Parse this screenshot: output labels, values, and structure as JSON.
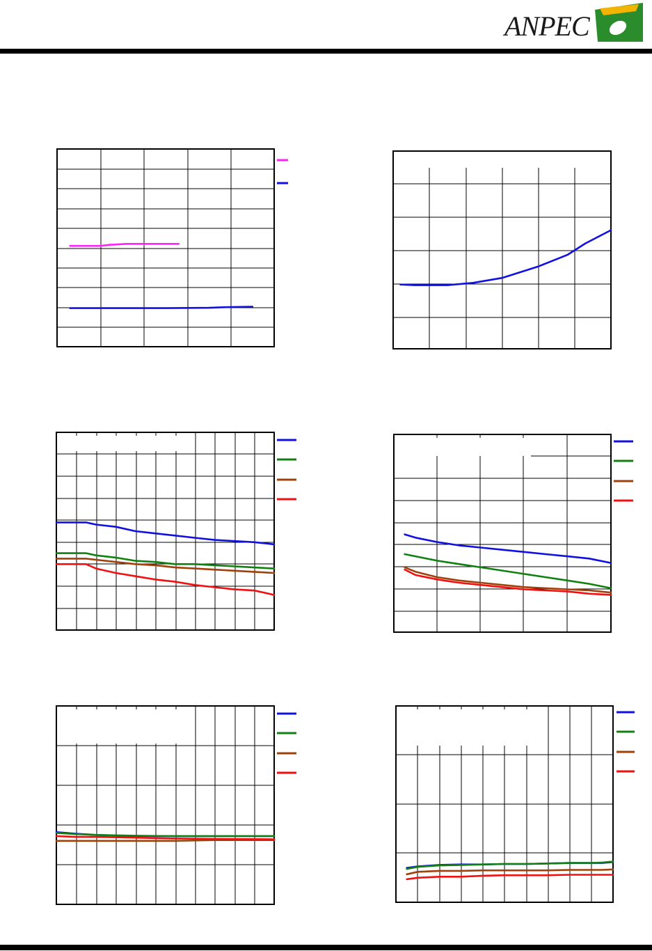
{
  "header": {
    "logo_text": "ANPEC"
  },
  "colors": {
    "blue": "#1010e0",
    "green": "#108010",
    "brown": "#a0400a",
    "red": "#f01010",
    "magenta": "#ff22ff",
    "grid": "#000000",
    "accent": "#2a8c2a",
    "gold": "#f2b400"
  },
  "chart_data": [
    {
      "id": "chart-1",
      "type": "line",
      "xlim": [
        0,
        5
      ],
      "ylim": [
        0,
        10
      ],
      "legend": {
        "position": "right",
        "entries": 2
      },
      "series": [
        {
          "color": "magenta",
          "x": [
            0.3,
            1.0,
            1.2,
            1.6,
            2.0,
            2.8
          ],
          "y": [
            5.1,
            5.1,
            5.15,
            5.2,
            5.2,
            5.2
          ]
        },
        {
          "color": "blue",
          "x": [
            0.3,
            1.5,
            2.5,
            3.5,
            3.9,
            4.5
          ],
          "y": [
            1.95,
            1.95,
            1.95,
            1.97,
            2.0,
            2.02
          ]
        }
      ]
    },
    {
      "id": "chart-2",
      "type": "line",
      "xlim": [
        0,
        6
      ],
      "ylim": [
        0,
        6
      ],
      "series": [
        {
          "color": "blue",
          "x": [
            0.2,
            0.6,
            1.5,
            2.2,
            3.0,
            4.0,
            4.8,
            5.3,
            6.0
          ],
          "y": [
            1.95,
            1.93,
            1.93,
            2.0,
            2.15,
            2.5,
            2.85,
            3.2,
            3.6
          ]
        }
      ]
    },
    {
      "id": "chart-3",
      "type": "line",
      "xlim": [
        0,
        11
      ],
      "ylim": [
        0,
        9
      ],
      "legend": {
        "position": "right",
        "entries": 4
      },
      "series": [
        {
          "color": "blue",
          "x": [
            0,
            1.5,
            2,
            3,
            4,
            5,
            6,
            7,
            8,
            9,
            10,
            11
          ],
          "y": [
            4.9,
            4.9,
            4.8,
            4.7,
            4.5,
            4.4,
            4.3,
            4.2,
            4.1,
            4.05,
            4.0,
            3.9
          ]
        },
        {
          "color": "green",
          "x": [
            0,
            1.5,
            2,
            3,
            4,
            5,
            6,
            7,
            8,
            9,
            10,
            11
          ],
          "y": [
            3.5,
            3.5,
            3.4,
            3.3,
            3.15,
            3.1,
            3.0,
            3.0,
            2.95,
            2.9,
            2.85,
            2.8
          ]
        },
        {
          "color": "brown",
          "x": [
            0,
            1.5,
            2,
            3,
            4,
            5,
            6,
            7,
            8,
            9,
            10,
            11
          ],
          "y": [
            3.25,
            3.25,
            3.2,
            3.1,
            3.0,
            2.95,
            2.85,
            2.8,
            2.75,
            2.7,
            2.65,
            2.6
          ]
        },
        {
          "color": "red",
          "x": [
            0,
            1.5,
            2,
            3,
            4,
            5,
            6,
            7,
            8,
            9,
            10,
            11
          ],
          "y": [
            3.0,
            3.0,
            2.8,
            2.6,
            2.45,
            2.3,
            2.2,
            2.05,
            1.95,
            1.85,
            1.8,
            1.6
          ]
        }
      ]
    },
    {
      "id": "chart-4",
      "type": "line",
      "xlim": [
        0,
        5
      ],
      "ylim": [
        0,
        9
      ],
      "legend": {
        "position": "right",
        "entries": 4
      },
      "series": [
        {
          "color": "blue",
          "x": [
            0.25,
            0.5,
            1,
            1.5,
            2,
            2.5,
            3,
            3.5,
            4,
            4.5,
            5
          ],
          "y": [
            4.45,
            4.3,
            4.1,
            3.95,
            3.85,
            3.75,
            3.65,
            3.55,
            3.45,
            3.35,
            3.15
          ]
        },
        {
          "color": "green",
          "x": [
            0.25,
            0.5,
            1,
            1.5,
            2,
            2.5,
            3,
            3.5,
            4,
            4.5,
            5
          ],
          "y": [
            3.55,
            3.45,
            3.25,
            3.1,
            2.95,
            2.8,
            2.65,
            2.5,
            2.35,
            2.2,
            2.0
          ]
        },
        {
          "color": "brown",
          "x": [
            0.25,
            0.5,
            1,
            1.5,
            2,
            2.5,
            3,
            3.5,
            4,
            4.5,
            5
          ],
          "y": [
            2.95,
            2.75,
            2.5,
            2.35,
            2.25,
            2.15,
            2.05,
            2.0,
            1.95,
            1.9,
            1.8
          ]
        },
        {
          "color": "red",
          "x": [
            0.25,
            0.5,
            1,
            1.5,
            2,
            2.5,
            3,
            3.5,
            4,
            4.5,
            5
          ],
          "y": [
            2.85,
            2.6,
            2.4,
            2.25,
            2.15,
            2.05,
            1.95,
            1.9,
            1.85,
            1.75,
            1.7
          ]
        }
      ]
    },
    {
      "id": "chart-5",
      "type": "line",
      "xlim": [
        0,
        11
      ],
      "ylim": [
        0,
        5
      ],
      "legend": {
        "position": "right",
        "entries": 4
      },
      "series": [
        {
          "color": "blue",
          "x": [
            0,
            1,
            2,
            4,
            6,
            8,
            11
          ],
          "y": [
            1.82,
            1.78,
            1.75,
            1.72,
            1.72,
            1.72,
            1.72
          ]
        },
        {
          "color": "green",
          "x": [
            0,
            1,
            2,
            4,
            6,
            8,
            11
          ],
          "y": [
            1.8,
            1.77,
            1.75,
            1.73,
            1.72,
            1.72,
            1.72
          ]
        },
        {
          "color": "brown",
          "x": [
            0,
            1,
            2,
            4,
            6,
            8,
            11
          ],
          "y": [
            1.6,
            1.6,
            1.6,
            1.6,
            1.6,
            1.62,
            1.62
          ]
        },
        {
          "color": "red",
          "x": [
            0,
            1,
            2,
            4,
            6,
            8,
            11
          ],
          "y": [
            1.72,
            1.7,
            1.7,
            1.68,
            1.66,
            1.65,
            1.64
          ]
        }
      ]
    },
    {
      "id": "chart-6",
      "type": "line",
      "xlim": [
        0,
        10
      ],
      "ylim": [
        0,
        4
      ],
      "legend": {
        "position": "right",
        "entries": 4
      },
      "series": [
        {
          "color": "blue",
          "x": [
            0.5,
            1,
            2,
            3,
            4,
            5,
            6,
            7,
            8,
            9,
            9.5,
            10
          ],
          "y": [
            0.7,
            0.73,
            0.76,
            0.77,
            0.77,
            0.78,
            0.78,
            0.79,
            0.8,
            0.8,
            0.8,
            0.82
          ]
        },
        {
          "color": "green",
          "x": [
            0.5,
            1,
            2,
            3,
            4,
            5,
            6,
            7,
            8,
            9,
            9.5,
            10
          ],
          "y": [
            0.68,
            0.72,
            0.75,
            0.76,
            0.77,
            0.78,
            0.78,
            0.79,
            0.8,
            0.8,
            0.81,
            0.83
          ]
        },
        {
          "color": "brown",
          "x": [
            0.5,
            1,
            2,
            3,
            4,
            5,
            6,
            7,
            8,
            9,
            9.5,
            10
          ],
          "y": [
            0.57,
            0.62,
            0.64,
            0.64,
            0.65,
            0.65,
            0.65,
            0.65,
            0.66,
            0.66,
            0.66,
            0.67
          ]
        },
        {
          "color": "red",
          "x": [
            0.5,
            1,
            2,
            3,
            4,
            5,
            6,
            7,
            8,
            9,
            9.5,
            10
          ],
          "y": [
            0.47,
            0.5,
            0.52,
            0.52,
            0.54,
            0.55,
            0.55,
            0.55,
            0.56,
            0.56,
            0.56,
            0.56
          ]
        }
      ]
    }
  ]
}
